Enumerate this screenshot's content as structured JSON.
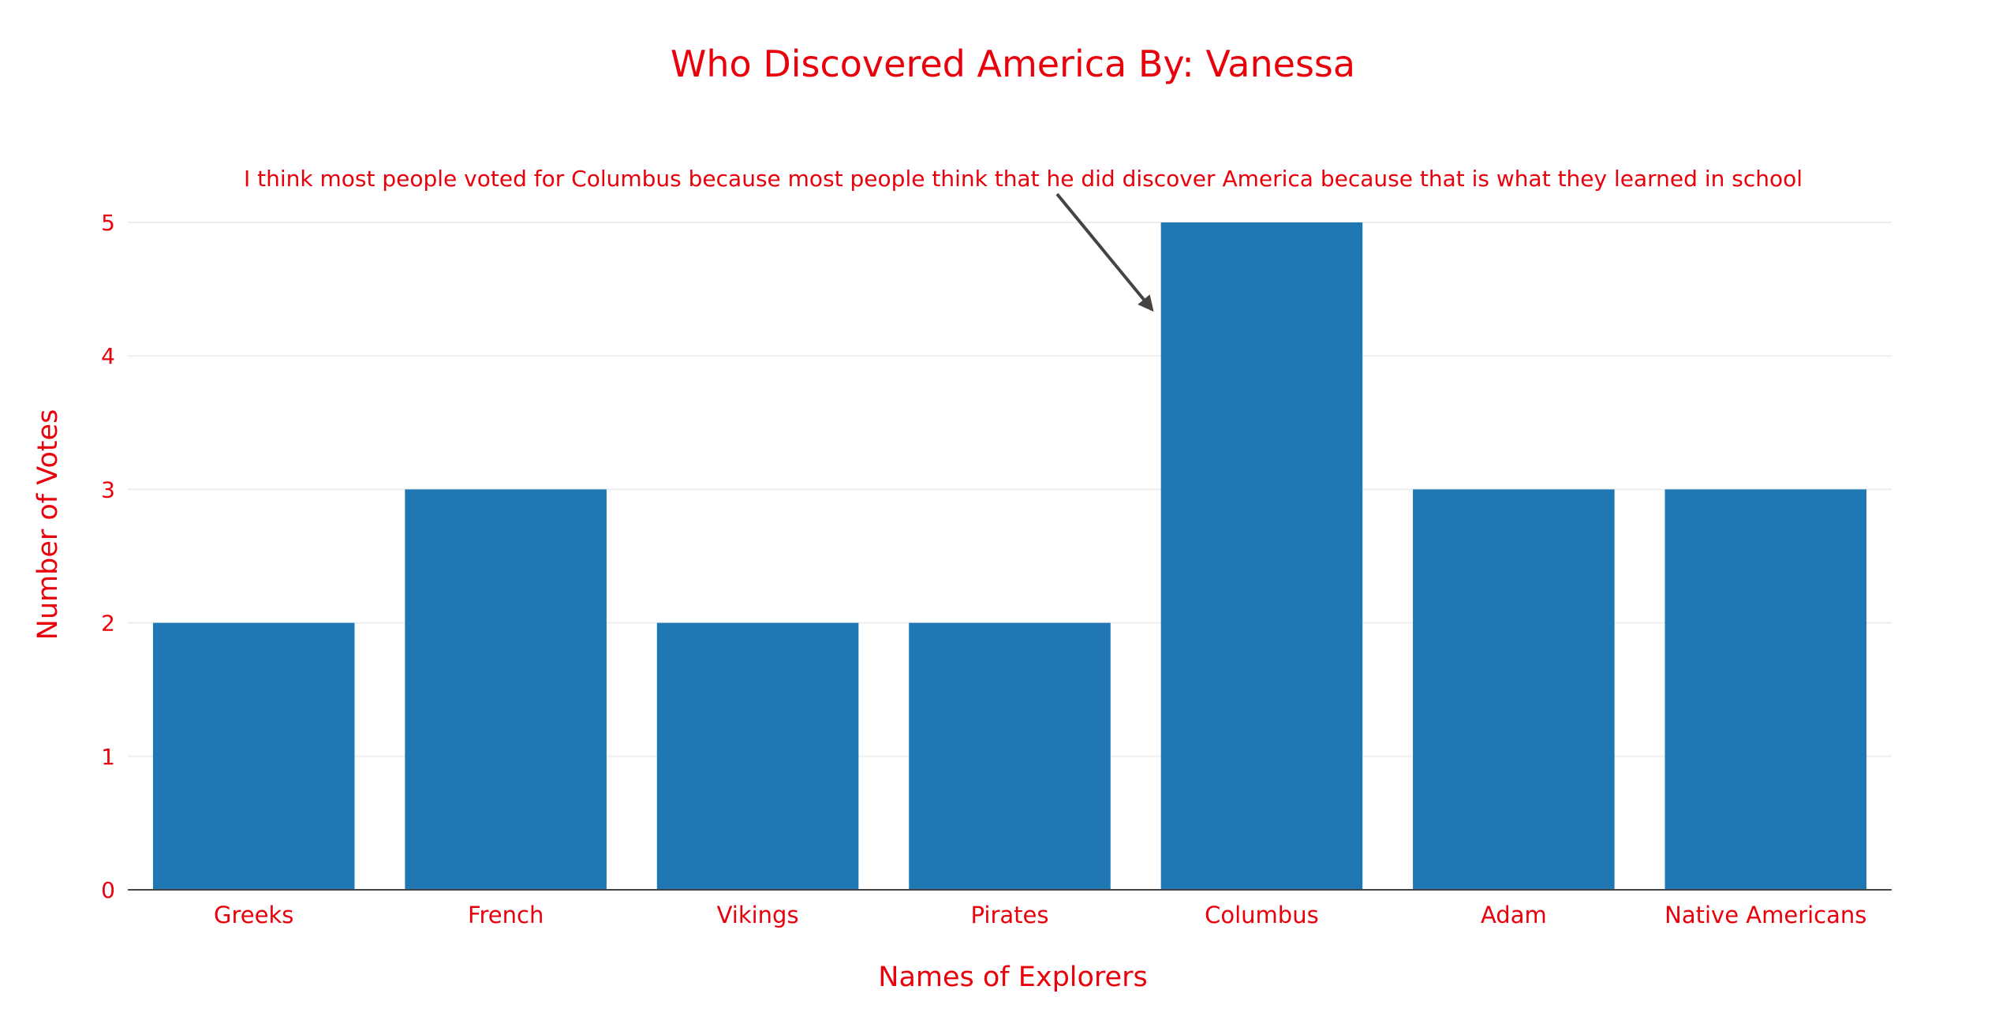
{
  "chart_data": {
    "type": "bar",
    "title": "Who Discovered America By: Vanessa",
    "xlabel": "Names of Explorers",
    "ylabel": "Number of Votes",
    "categories": [
      "Greeks",
      "French",
      "Vikings",
      "Pirates",
      "Columbus",
      "Adam",
      "Native Americans"
    ],
    "values": [
      2,
      3,
      2,
      2,
      5,
      3,
      3
    ],
    "ylim": [
      0,
      5
    ],
    "yticks": [
      0,
      1,
      2,
      3,
      4,
      5
    ],
    "grid": true,
    "legend": "none",
    "annotation": {
      "text": "I think most people voted for Columbus because most people think that he did discover America because that is what they learned in school",
      "target_category": "Columbus"
    },
    "colors": {
      "bar": "#1f77b4",
      "text": "#e8000b",
      "grid": "#eeeeee",
      "axis": "#444444",
      "arrow": "#444444"
    }
  }
}
